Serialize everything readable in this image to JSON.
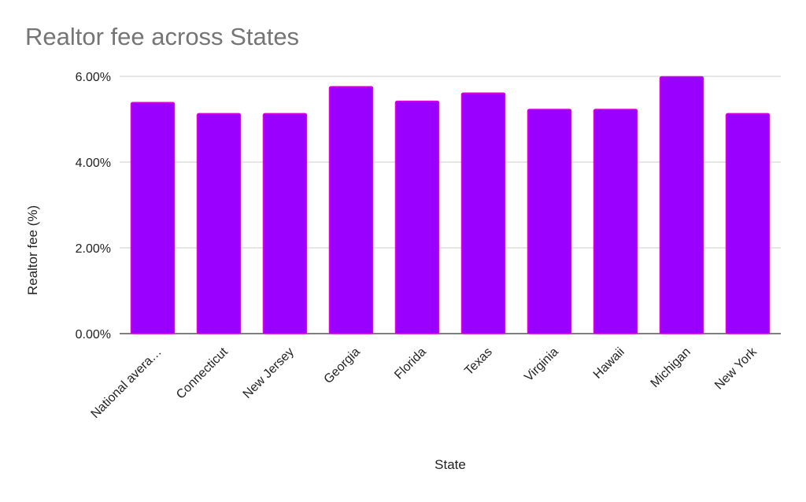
{
  "chart_data": {
    "type": "bar",
    "title": "Realtor fee across States",
    "xlabel": "State",
    "ylabel": "Realtor fee (%)",
    "categories": [
      "National avera…",
      "Connecticut",
      "New Jersey",
      "Georgia",
      "Florida",
      "Texas",
      "Virginia",
      "Hawaii",
      "Michigan",
      "New York"
    ],
    "series": [
      {
        "values": [
          5.39,
          5.13,
          5.13,
          5.76,
          5.42,
          5.61,
          5.23,
          5.23,
          5.99,
          5.13
        ]
      }
    ],
    "ylim": [
      0,
      6
    ],
    "yticks": [
      0,
      2,
      4,
      6
    ],
    "ytick_labels": [
      "0.00%",
      "2.00%",
      "4.00%",
      "6.00%"
    ],
    "grid": true,
    "legend": "none",
    "colors": {
      "bar_fill": "#9900ff",
      "bar_stroke": "#dd00dd",
      "title": "#757575"
    }
  }
}
